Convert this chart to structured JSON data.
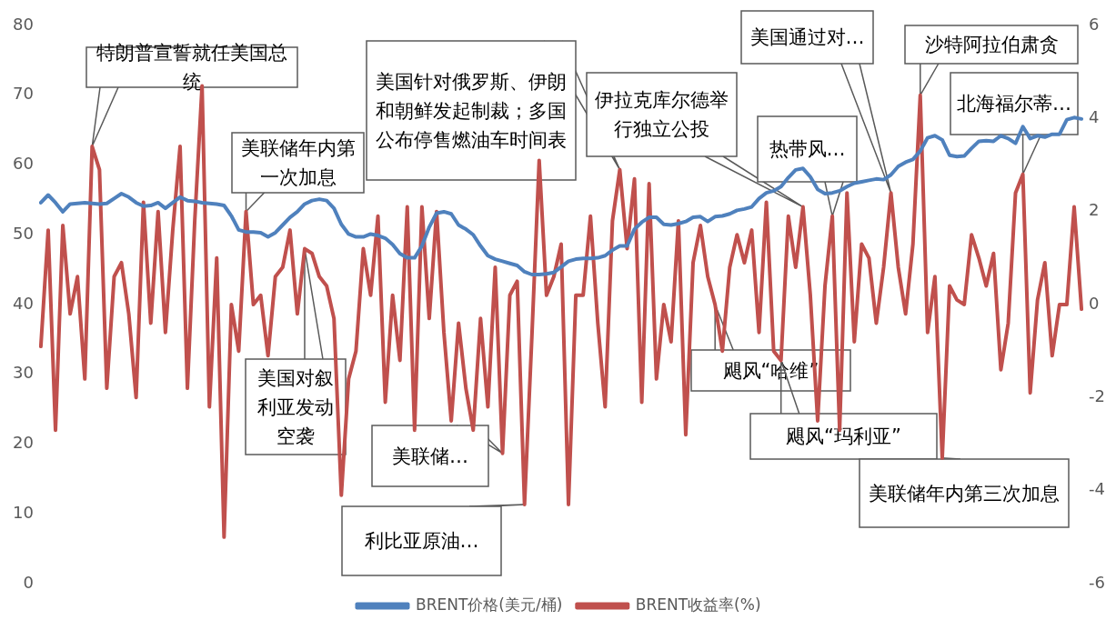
{
  "chart_data": {
    "type": "line",
    "categories": [
      null,
      null,
      null,
      null,
      null,
      null,
      null,
      null,
      null,
      null,
      null,
      null,
      null,
      null,
      null,
      null,
      null,
      null,
      null,
      null,
      null,
      null,
      null,
      null,
      null,
      null,
      null,
      null,
      null,
      null,
      null,
      null,
      null,
      null,
      null,
      null,
      null,
      null,
      null,
      null,
      null,
      null,
      null,
      null,
      null,
      null,
      null,
      null,
      null,
      null,
      null,
      null,
      null,
      null,
      null,
      null,
      null,
      null,
      null,
      null,
      null,
      null,
      null,
      null,
      null,
      null,
      null,
      null,
      null,
      null,
      null,
      null,
      null,
      null,
      null,
      null,
      null,
      null,
      null,
      null,
      null,
      null,
      null,
      null,
      null,
      null,
      null,
      null,
      null,
      null,
      null,
      null,
      null,
      null,
      null,
      null,
      null,
      null,
      null,
      null,
      null,
      null,
      null,
      null,
      null,
      null,
      null,
      null,
      null,
      null,
      null,
      null,
      null,
      null,
      null,
      null,
      null,
      null,
      null,
      null,
      null,
      null,
      null,
      null,
      null,
      null,
      null,
      null,
      null,
      null,
      null,
      null,
      null,
      null,
      null,
      null,
      null,
      null,
      null,
      null,
      null,
      null,
      null
    ],
    "series": [
      {
        "name": "BRENT价格(美元/桶)",
        "color": "#4f81bd",
        "values": [
          54.6,
          55.7,
          54.6,
          53.3,
          54.4,
          54.5,
          54.6,
          54.5,
          54.4,
          54.5,
          55.2,
          55.9,
          55.4,
          54.6,
          54.1,
          54.2,
          54.6,
          53.8,
          54.6,
          55.4,
          54.9,
          54.8,
          54.6,
          54.5,
          54.4,
          54.2,
          52.7,
          50.7,
          50.4,
          50.4,
          50.3,
          49.7,
          50.3,
          51.4,
          52.5,
          53.3,
          54.4,
          54.9,
          55.1,
          54.9,
          53.8,
          51.5,
          50.1,
          49.7,
          49.7,
          50.1,
          49.9,
          49.5,
          48.6,
          47.3,
          46.7,
          46.7,
          48.4,
          51.1,
          53.1,
          53.3,
          53.0,
          51.4,
          50.8,
          50.0,
          48.4,
          47.0,
          46.5,
          46.2,
          45.9,
          45.6,
          44.7,
          44.3,
          44.3,
          44.4,
          44.6,
          45.4,
          46.2,
          46.5,
          46.6,
          46.6,
          46.7,
          47.0,
          47.8,
          48.4,
          48.4,
          50.8,
          51.8,
          52.5,
          52.5,
          51.5,
          51.4,
          51.6,
          51.9,
          52.5,
          52.6,
          51.9,
          52.6,
          52.7,
          53.0,
          53.5,
          53.7,
          54.0,
          55.2,
          56.0,
          56.3,
          56.9,
          58.2,
          59.3,
          59.5,
          58.3,
          56.5,
          55.9,
          56.0,
          56.3,
          56.9,
          57.4,
          57.6,
          57.8,
          58.0,
          57.9,
          58.6,
          59.8,
          60.4,
          60.8,
          62.0,
          63.9,
          64.2,
          63.6,
          61.4,
          61.2,
          61.3,
          62.4,
          63.4,
          63.5,
          63.4,
          64.2,
          63.8,
          63.1,
          65.5,
          63.8,
          64.2,
          64.0,
          64.4,
          64.4,
          66.5,
          66.8,
          66.6
        ]
      },
      {
        "name": "BRENT收益率(%)",
        "color": "#c0504d",
        "axis": "y2",
        "values": [
          -0.9,
          1.6,
          -2.7,
          1.7,
          -0.2,
          0.6,
          -1.6,
          3.4,
          2.9,
          -1.8,
          0.6,
          0.9,
          -0.2,
          -2.0,
          2.2,
          -0.4,
          2.0,
          -0.6,
          1.6,
          3.4,
          -1.8,
          1.8,
          4.7,
          -2.2,
          1.0,
          -5.0,
          0,
          -1.0,
          2.0,
          0,
          0.2,
          -1.1,
          0.6,
          0.8,
          1.6,
          -0.2,
          1.2,
          1.1,
          0.6,
          0.4,
          -0.3,
          -4.1,
          -1.6,
          -1.0,
          1.2,
          0.2,
          1.9,
          -2.1,
          0.2,
          -1.2,
          2.1,
          -2.7,
          2.1,
          -0.3,
          2.0,
          -0.6,
          -2.5,
          -0.4,
          -1.8,
          -2.7,
          -0.3,
          -2.2,
          0.8,
          -3.2,
          0.2,
          0.5,
          -4.3,
          -0.7,
          3.1,
          0.2,
          0.6,
          1.3,
          -4.3,
          0.2,
          0.2,
          1.9,
          -0.4,
          -2.2,
          1.8,
          2.9,
          1.2,
          2.7,
          -2.1,
          2.6,
          -1.6,
          0,
          -0.8,
          1.8,
          -2.8,
          0.9,
          1.7,
          0.6,
          0,
          -1.0,
          0.8,
          1.5,
          0.9,
          1.6,
          -0.6,
          2.2,
          -1.0,
          -1.2,
          1.9,
          0.8,
          2.1,
          0.2,
          -2.5,
          0.4,
          1.9,
          -2.7,
          2.4,
          -0.8,
          1.3,
          1.0,
          -0.4,
          0.8,
          2.4,
          0.8,
          -0.2,
          1.3,
          4.5,
          -0.6,
          0.6,
          -3.3,
          0.4,
          0.1,
          0,
          1.5,
          1.0,
          0.4,
          1.1,
          -1.4,
          -0.4,
          2.4,
          2.8,
          -1.9,
          0.1,
          0.9,
          -1.1,
          0,
          0,
          2.1,
          -0.1
        ]
      }
    ],
    "ylim": [
      0,
      80
    ],
    "yticks": [
      0,
      10,
      20,
      30,
      40,
      50,
      60,
      70,
      80
    ],
    "y2lim": [
      -6,
      6
    ],
    "y2ticks": [
      -6,
      -4,
      -2,
      0,
      2,
      4,
      6
    ],
    "tick_labels": "y",
    "grid": false,
    "legend": "bottom",
    "marker": "none",
    "line_style": "solid",
    "annotations": [
      "特朗普宣誓就任美国总统",
      "美联储年内第一次加息",
      "美国针对俄罗斯、伊朗和朝鲜发起制裁；多国公布停售燃油车时间表",
      "伊拉克库尔德举行独立公投",
      "美国通过对…",
      "热带风…",
      "沙特阿拉伯肃贪",
      "北海福尔蒂…",
      "美国对叙利亚发动空袭",
      "美联储…",
      "利比亚原油…",
      "飓风“哈维”",
      "飓风“玛利亚”",
      "美联储年内第三次加息"
    ]
  }
}
